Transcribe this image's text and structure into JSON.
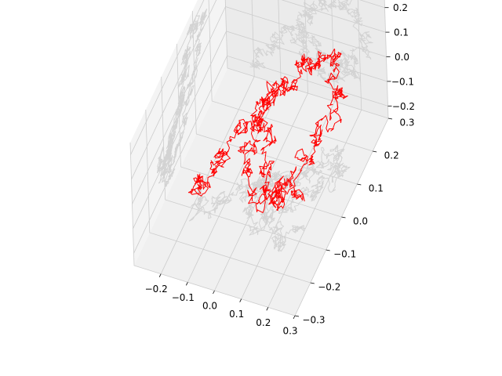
{
  "chart_data": {
    "type": "line",
    "projection": "3d",
    "title": "",
    "xlabel": "",
    "ylabel": "",
    "zlabel": "",
    "xlim": [
      -0.3,
      0.3
    ],
    "ylim": [
      -0.3,
      0.3
    ],
    "zlim": [
      -0.25,
      0.25
    ],
    "x_ticks": [
      -0.2,
      -0.1,
      0.0,
      0.1,
      0.2,
      0.3
    ],
    "x_tick_labels": [
      "−0.2",
      "−0.1",
      "0.0",
      "0.1",
      "0.2",
      "0.3"
    ],
    "y_ticks": [
      -0.3,
      -0.2,
      -0.1,
      0.0,
      0.1,
      0.2,
      0.3
    ],
    "y_tick_labels": [
      "−0.3",
      "−0.2",
      "−0.1",
      "0.0",
      "0.1",
      "0.2",
      "0.3"
    ],
    "z_ticks": [
      -0.2,
      -0.1,
      0.0,
      0.1,
      0.2
    ],
    "z_tick_labels": [
      "−0.2",
      "−0.1",
      "0.0",
      "0.1",
      "0.2"
    ],
    "grid": true,
    "legend": "none",
    "series": [
      {
        "kind": "random-walk path",
        "color": "#ff0000",
        "keypoints": [
          [
            -0.22,
            -0.05,
            -0.22
          ],
          [
            -0.17,
            -0.1,
            -0.15
          ],
          [
            -0.12,
            -0.05,
            -0.08
          ],
          [
            -0.06,
            0.0,
            0.0
          ],
          [
            0.0,
            0.03,
            0.06
          ],
          [
            0.03,
            0.06,
            0.1
          ],
          [
            0.07,
            0.04,
            0.14
          ],
          [
            0.12,
            0.09,
            0.2
          ],
          [
            0.16,
            0.13,
            0.16
          ],
          [
            0.2,
            0.16,
            0.12
          ],
          [
            0.22,
            0.12,
            0.04
          ],
          [
            0.18,
            0.06,
            -0.05
          ],
          [
            0.14,
            0.02,
            -0.12
          ],
          [
            0.08,
            -0.05,
            -0.18
          ],
          [
            0.02,
            -0.1,
            -0.12
          ],
          [
            -0.04,
            -0.04,
            -0.05
          ],
          [
            -0.02,
            0.02,
            0.02
          ],
          [
            0.03,
            -0.02,
            -0.04
          ],
          [
            0.09,
            -0.08,
            -0.1
          ],
          [
            0.15,
            -0.12,
            -0.06
          ],
          [
            0.2,
            -0.06,
            -0.14
          ]
        ]
      },
      {
        "kind": "projection shadows on xy, xz and yz planes",
        "color": "#d3d3d3"
      }
    ]
  },
  "colors": {
    "pane_bottom": "#f0f0f0",
    "pane_left": "#f4f4f4",
    "pane_back": "#ebebeb",
    "gridline": "#cccccc",
    "path": "#ff0000",
    "shadow": "#d3d3d3"
  }
}
